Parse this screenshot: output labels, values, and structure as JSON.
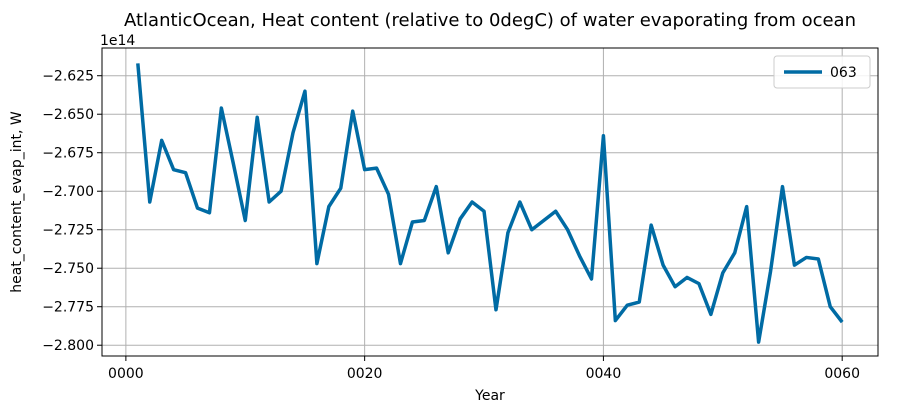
{
  "chart_data": {
    "type": "line",
    "title": "AtlanticOcean, Heat content (relative to 0degC) of water evaporating from ocean",
    "xlabel": "Year",
    "ylabel": "heat_content_evap_int, W",
    "y_offset_label": "1e14",
    "xlim": [
      -2,
      63
    ],
    "ylim": [
      -2.807,
      -2.607
    ],
    "x_ticks": [
      0,
      20,
      40,
      60
    ],
    "x_tick_labels": [
      "0000",
      "0020",
      "0040",
      "0060"
    ],
    "y_ticks": [
      -2.8,
      -2.775,
      -2.75,
      -2.725,
      -2.7,
      -2.675,
      -2.65,
      -2.625
    ],
    "y_tick_labels": [
      "−2.800",
      "−2.775",
      "−2.750",
      "−2.725",
      "−2.700",
      "−2.675",
      "−2.650",
      "−2.625"
    ],
    "grid": true,
    "legend_position": "top-right",
    "series": [
      {
        "name": "063",
        "color": "#006ba4",
        "x": [
          1,
          2,
          3,
          4,
          5,
          6,
          7,
          8,
          9,
          10,
          11,
          12,
          13,
          14,
          15,
          16,
          17,
          18,
          19,
          20,
          21,
          22,
          23,
          24,
          25,
          26,
          27,
          28,
          29,
          30,
          31,
          32,
          33,
          34,
          35,
          36,
          37,
          38,
          39,
          40,
          41,
          42,
          43,
          44,
          45,
          46,
          47,
          48,
          49,
          50,
          51,
          52,
          53,
          54,
          55,
          56,
          57,
          58,
          59,
          60
        ],
        "values": [
          -2.617,
          -2.707,
          -2.667,
          -2.686,
          -2.688,
          -2.711,
          -2.714,
          -2.646,
          -2.682,
          -2.719,
          -2.652,
          -2.707,
          -2.7,
          -2.662,
          -2.635,
          -2.747,
          -2.71,
          -2.698,
          -2.648,
          -2.686,
          -2.685,
          -2.702,
          -2.747,
          -2.72,
          -2.719,
          -2.697,
          -2.74,
          -2.718,
          -2.707,
          -2.713,
          -2.777,
          -2.727,
          -2.707,
          -2.725,
          -2.719,
          -2.713,
          -2.725,
          -2.742,
          -2.757,
          -2.664,
          -2.784,
          -2.774,
          -2.772,
          -2.722,
          -2.748,
          -2.762,
          -2.756,
          -2.76,
          -2.78,
          -2.753,
          -2.74,
          -2.71,
          -2.798,
          -2.752,
          -2.697,
          -2.748,
          -2.743,
          -2.744,
          -2.775,
          -2.785
        ]
      }
    ]
  }
}
